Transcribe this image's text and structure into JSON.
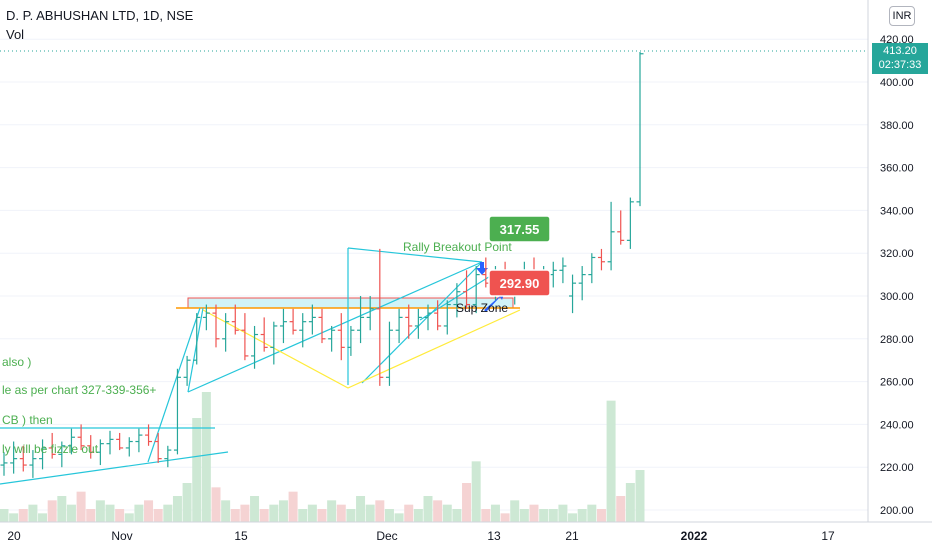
{
  "header": {
    "symbol_line": "D. P. ABHUSHAN LTD, 1D, NSE",
    "volume_label": "Vol"
  },
  "currency_button": "INR",
  "price_tag": {
    "price": "413.20",
    "countdown": "02:37:33"
  },
  "colors": {
    "up": "#26a69a",
    "down": "#ef5350",
    "vol_up": "#cde8d4",
    "vol_down": "#f5d3d3",
    "trendline": "#26c6da",
    "zone": "#ffeb3b",
    "text_green": "#4caf50",
    "tag_green": "#4caf50",
    "tag_red": "#ef5350"
  },
  "chart_data": {
    "type": "ohlc",
    "yaxis_ticks": [
      420,
      400,
      380,
      360,
      340,
      320,
      300,
      280,
      260,
      240,
      220,
      200
    ],
    "yaxis_labels": [
      "420.00",
      "400.00",
      "380.00",
      "360.00",
      "340.00",
      "320.00",
      "300.00",
      "280.00",
      "260.00",
      "240.00",
      "220.00",
      "200.00"
    ],
    "xaxis_labels": [
      "20",
      "Nov",
      "15",
      "Dec",
      "13",
      "21",
      "2022",
      "17"
    ],
    "last_price": 413.2,
    "bars": [
      [
        221,
        227,
        216,
        222
      ],
      [
        222,
        232,
        217,
        224
      ],
      [
        224,
        230,
        218,
        221
      ],
      [
        221,
        228,
        215,
        224
      ],
      [
        224,
        233,
        219,
        229
      ],
      [
        229,
        236,
        224,
        226
      ],
      [
        226,
        232,
        220,
        230
      ],
      [
        230,
        238,
        226,
        234
      ],
      [
        234,
        240,
        228,
        230
      ],
      [
        230,
        235,
        224,
        227
      ],
      [
        227,
        233,
        221,
        231
      ],
      [
        231,
        237,
        226,
        233
      ],
      [
        233,
        236,
        228,
        229
      ],
      [
        229,
        234,
        225,
        232
      ],
      [
        232,
        238,
        227,
        235
      ],
      [
        235,
        240,
        230,
        232
      ],
      [
        232,
        236,
        222,
        224
      ],
      [
        224,
        230,
        220,
        228
      ],
      [
        228,
        266,
        226,
        262
      ],
      [
        262,
        272,
        258,
        270
      ],
      [
        270,
        292,
        268,
        290
      ],
      [
        290,
        296,
        284,
        292
      ],
      [
        292,
        296,
        276,
        280
      ],
      [
        280,
        292,
        274,
        288
      ],
      [
        288,
        296,
        282,
        284
      ],
      [
        284,
        292,
        270,
        272
      ],
      [
        272,
        286,
        266,
        282
      ],
      [
        282,
        290,
        274,
        276
      ],
      [
        276,
        288,
        268,
        286
      ],
      [
        286,
        294,
        278,
        288
      ],
      [
        288,
        294,
        282,
        284
      ],
      [
        284,
        292,
        276,
        288
      ],
      [
        288,
        296,
        282,
        290
      ],
      [
        290,
        294,
        278,
        280
      ],
      [
        280,
        286,
        274,
        284
      ],
      [
        284,
        292,
        270,
        276
      ],
      [
        276,
        286,
        272,
        284
      ],
      [
        284,
        300,
        278,
        290
      ],
      [
        290,
        300,
        284,
        294
      ],
      [
        294,
        322,
        258,
        262
      ],
      [
        262,
        288,
        258,
        284
      ],
      [
        284,
        294,
        278,
        290
      ],
      [
        290,
        296,
        280,
        286
      ],
      [
        286,
        294,
        280,
        290
      ],
      [
        290,
        296,
        284,
        292
      ],
      [
        292,
        298,
        284,
        286
      ],
      [
        286,
        298,
        282,
        296
      ],
      [
        296,
        306,
        290,
        302
      ],
      [
        302,
        312,
        294,
        296
      ],
      [
        296,
        314,
        292,
        310
      ],
      [
        310,
        318,
        304,
        306
      ],
      [
        306,
        314,
        298,
        308
      ],
      [
        308,
        316,
        300,
        304
      ],
      [
        304,
        312,
        296,
        308
      ],
      [
        308,
        316,
        300,
        310
      ],
      [
        310,
        318,
        302,
        306
      ],
      [
        306,
        314,
        300,
        310
      ],
      [
        310,
        316,
        304,
        312
      ],
      [
        312,
        318,
        306,
        314
      ],
      [
        300,
        310,
        292,
        306
      ],
      [
        306,
        314,
        298,
        310
      ],
      [
        310,
        320,
        306,
        318
      ],
      [
        318,
        322,
        312,
        316
      ],
      [
        316,
        344,
        312,
        330
      ],
      [
        330,
        340,
        324,
        326
      ],
      [
        326,
        346,
        322,
        344
      ],
      [
        344,
        414,
        342,
        413.2
      ]
    ],
    "volumes": [
      3,
      2,
      3,
      4,
      2,
      5,
      6,
      4,
      7,
      3,
      5,
      4,
      3,
      2,
      4,
      5,
      3,
      4,
      6,
      9,
      24,
      30,
      8,
      5,
      3,
      4,
      6,
      3,
      4,
      5,
      7,
      3,
      4,
      3,
      5,
      4,
      3,
      6,
      4,
      5,
      3,
      2,
      4,
      3,
      6,
      5,
      4,
      3,
      9,
      14,
      3,
      4,
      2,
      5,
      3,
      4,
      3,
      3,
      4,
      2,
      3,
      4,
      3,
      28,
      6,
      9,
      12
    ],
    "annotations": [
      {
        "text": "Rally Breakout Point"
      },
      {
        "text": "Sup Zone"
      },
      {
        "text": "also )"
      },
      {
        "text": "le as per chart 327-339-356+"
      },
      {
        "text": "CB ) then"
      },
      {
        "text": "ly will be fizzle out"
      }
    ],
    "tags": [
      {
        "text": "317.55"
      },
      {
        "text": "292.90"
      }
    ]
  }
}
